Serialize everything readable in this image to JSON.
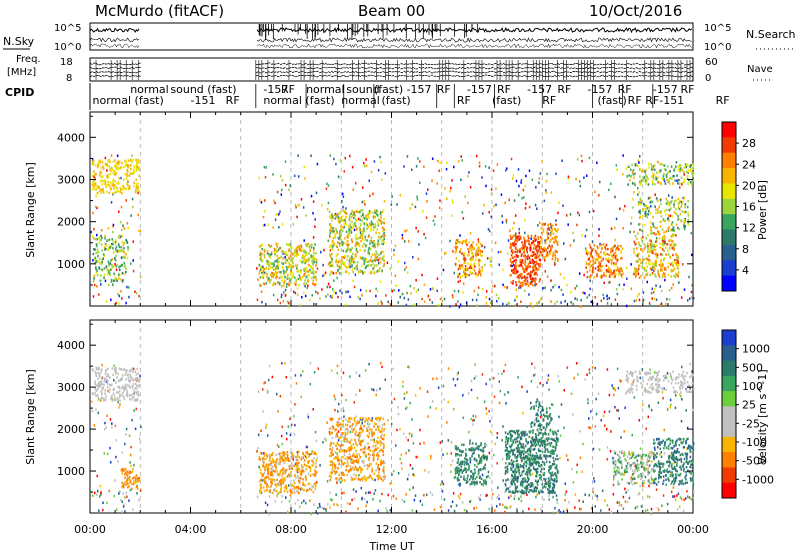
{
  "header": {
    "station": "McMurdo (fitACF)",
    "beam": "Beam 00",
    "date": "10/Oct/2016"
  },
  "top_panel": {
    "left_label": "N.Sky",
    "right_label": "N.Search",
    "ytick_top": "10^5",
    "ytick_bottom": "10^0",
    "rtick_top": "10^5",
    "rtick_bottom": "10^0"
  },
  "freq_panel": {
    "left_label_line1": "Freq.",
    "left_label_line2": "[MHz]",
    "ytick_top": "18",
    "ytick_bottom": "8",
    "right_label": "Nave",
    "rtick_top": "60",
    "rtick_bottom": "0"
  },
  "cpid": {
    "label": "CPID",
    "row1": [
      {
        "text": "normal",
        "x": 1.6
      },
      {
        "text": "sound (fast)",
        "x": 3.2
      },
      {
        "text": "-157",
        "x": 6.9
      },
      {
        "text": "RF",
        "x": 7.6
      },
      {
        "text": "normal",
        "x": 8.6
      },
      {
        "text": "sound",
        "x": 10.2
      },
      {
        "text": "(fast)",
        "x": 11.3
      },
      {
        "text": "-157",
        "x": 12.6
      },
      {
        "text": "RF",
        "x": 13.8
      },
      {
        "text": "-157",
        "x": 15.0
      },
      {
        "text": "RF",
        "x": 16.2
      },
      {
        "text": "-157",
        "x": 17.4
      },
      {
        "text": "RF",
        "x": 18.6
      },
      {
        "text": "-157",
        "x": 19.8
      },
      {
        "text": "RF",
        "x": 21.0
      },
      {
        "text": "-157",
        "x": 22.4
      },
      {
        "text": "RF",
        "x": 23.5
      }
    ],
    "row2": [
      {
        "text": "normal (fast)",
        "x": 0.1
      },
      {
        "text": "-151",
        "x": 4.0
      },
      {
        "text": "RF",
        "x": 5.4
      },
      {
        "text": "normal (fast)",
        "x": 6.9
      },
      {
        "text": "normal",
        "x": 10.0
      },
      {
        "text": "(fast)",
        "x": 11.6
      },
      {
        "text": "RF",
        "x": 14.6
      },
      {
        "text": "(fast)",
        "x": 16.0
      },
      {
        "text": "RF",
        "x": 18.0
      },
      {
        "text": "(fast)",
        "x": 20.2
      },
      {
        "text": "RF",
        "x": 21.4
      },
      {
        "text": "RF-151",
        "x": 22.1
      },
      {
        "text": "RF",
        "x": 24.9
      }
    ]
  },
  "chart_data": {
    "type": "heatmap",
    "x_range": [
      0,
      24
    ],
    "x_ticks": [
      "00:00",
      "04:00",
      "08:00",
      "12:00",
      "16:00",
      "20:00",
      "00:00"
    ],
    "xlabel": "Time UT",
    "ylabel": "Slant Range [km]",
    "y_range": [
      0,
      4600
    ],
    "y_ticks": [
      1000,
      2000,
      3000,
      4000
    ],
    "data_gap_UT": [
      2.0,
      6.6
    ],
    "panels": [
      {
        "name": "power",
        "colorbar_label": "Power [dB]",
        "colorbar_ticks": [
          "28",
          "24",
          "20",
          "16",
          "12",
          "8",
          "4"
        ],
        "colorbar_colors": [
          "#ff0000",
          "#f03c00",
          "#ff7f00",
          "#f7b500",
          "#e6e600",
          "#9bd43c",
          "#3aa55f",
          "#2c7a69",
          "#2a6090",
          "#1a3fd0",
          "#0000ff"
        ],
        "clusters": [
          {
            "t0": 0.05,
            "t1": 1.95,
            "r0": 2700,
            "r1": 3500,
            "dens": 0.55,
            "v0": 0.55,
            "v1": 0.75
          },
          {
            "t0": 0.1,
            "t1": 1.5,
            "r0": 600,
            "r1": 1700,
            "dens": 0.4,
            "v0": 0.3,
            "v1": 0.7
          },
          {
            "t0": 6.7,
            "t1": 9.0,
            "r0": 500,
            "r1": 1500,
            "dens": 0.6,
            "v0": 0.35,
            "v1": 0.85
          },
          {
            "t0": 9.5,
            "t1": 11.7,
            "r0": 800,
            "r1": 2300,
            "dens": 0.55,
            "v0": 0.35,
            "v1": 0.8
          },
          {
            "t0": 14.5,
            "t1": 15.6,
            "r0": 700,
            "r1": 1600,
            "dens": 0.55,
            "v0": 0.55,
            "v1": 0.95
          },
          {
            "t0": 16.7,
            "t1": 17.9,
            "r0": 500,
            "r1": 1700,
            "dens": 0.8,
            "v0": 0.75,
            "v1": 1.0
          },
          {
            "t0": 17.9,
            "t1": 18.6,
            "r0": 1100,
            "r1": 2000,
            "dens": 0.6,
            "v0": 0.65,
            "v1": 0.95
          },
          {
            "t0": 19.7,
            "t1": 21.2,
            "r0": 700,
            "r1": 1500,
            "dens": 0.6,
            "v0": 0.6,
            "v1": 0.95
          },
          {
            "t0": 21.6,
            "t1": 23.4,
            "r0": 700,
            "r1": 1800,
            "dens": 0.5,
            "v0": 0.45,
            "v1": 0.9
          },
          {
            "t0": 21.3,
            "t1": 24.0,
            "r0": 2900,
            "r1": 3400,
            "dens": 0.45,
            "v0": 0.3,
            "v1": 0.7
          },
          {
            "t0": 21.8,
            "t1": 23.8,
            "r0": 1800,
            "r1": 2600,
            "dens": 0.35,
            "v0": 0.3,
            "v1": 0.75
          }
        ]
      },
      {
        "name": "velocity",
        "colorbar_label": "Velocity [m s^-1]",
        "colorbar_ticks": [
          "1000",
          "500",
          "100",
          "25",
          "-25",
          "-100",
          "-500",
          "-1000"
        ],
        "colorbar_colors": [
          "#1a3fd0",
          "#2a6090",
          "#2c7a69",
          "#3aa55f",
          "#6ccf3c",
          "#c0c0c0",
          "#c0c0c0",
          "#f7b500",
          "#ff7f00",
          "#f03c00",
          "#ff0000"
        ],
        "clusters": [
          {
            "t0": 0.05,
            "t1": 1.95,
            "r0": 2700,
            "r1": 3500,
            "dens": 0.55,
            "v0": 0.45,
            "v1": 0.55
          },
          {
            "t0": 1.2,
            "t1": 1.95,
            "r0": 600,
            "r1": 1100,
            "dens": 0.6,
            "v0": 0.15,
            "v1": 0.3
          },
          {
            "t0": 6.7,
            "t1": 9.0,
            "r0": 500,
            "r1": 1500,
            "dens": 0.6,
            "v0": 0.15,
            "v1": 0.4
          },
          {
            "t0": 9.5,
            "t1": 11.7,
            "r0": 800,
            "r1": 2300,
            "dens": 0.55,
            "v0": 0.15,
            "v1": 0.4
          },
          {
            "t0": 14.5,
            "t1": 15.8,
            "r0": 700,
            "r1": 1700,
            "dens": 0.55,
            "v0": 0.7,
            "v1": 0.85
          },
          {
            "t0": 16.5,
            "t1": 18.6,
            "r0": 500,
            "r1": 2000,
            "dens": 0.75,
            "v0": 0.72,
            "v1": 0.86
          },
          {
            "t0": 17.5,
            "t1": 18.4,
            "r0": 2000,
            "r1": 2700,
            "dens": 0.4,
            "v0": 0.72,
            "v1": 0.86
          },
          {
            "t0": 20.8,
            "t1": 22.4,
            "r0": 700,
            "r1": 1500,
            "dens": 0.55,
            "v0": 0.3,
            "v1": 0.85
          },
          {
            "t0": 22.4,
            "t1": 24.0,
            "r0": 700,
            "r1": 1800,
            "dens": 0.55,
            "v0": 0.7,
            "v1": 0.9
          },
          {
            "t0": 21.3,
            "t1": 24.0,
            "r0": 2900,
            "r1": 3400,
            "dens": 0.45,
            "v0": 0.35,
            "v1": 0.55
          }
        ]
      }
    ],
    "dashed_verticals_UT": [
      2,
      6,
      8,
      10,
      12,
      14,
      16,
      18,
      20,
      22
    ]
  }
}
